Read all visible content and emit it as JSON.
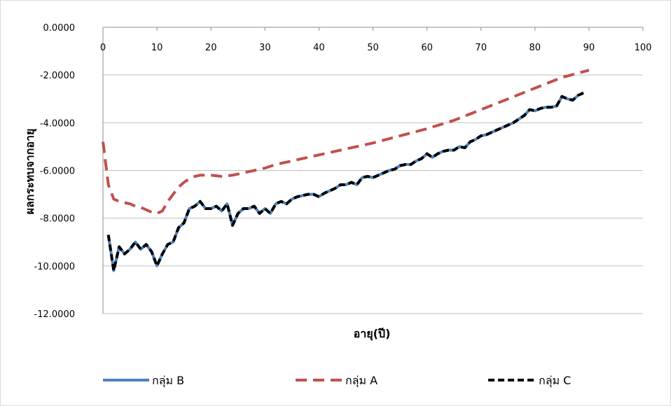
{
  "chart_data": {
    "type": "line",
    "title": "",
    "xlabel": "อายุ(ปี)",
    "ylabel": "ผลกระทบจากอายุ",
    "xlim": [
      0,
      100
    ],
    "ylim": [
      -12,
      0
    ],
    "x_ticks": [
      0,
      10,
      20,
      30,
      40,
      50,
      60,
      70,
      80,
      90,
      100
    ],
    "y_ticks": [
      0,
      -2,
      -4,
      -6,
      -8,
      -10,
      -12
    ],
    "y_tick_labels": [
      "0.0000",
      "-2.0000",
      "-4.0000",
      "-6.0000",
      "-8.0000",
      "-10.0000",
      "-12.0000"
    ],
    "grid": "horizontal",
    "legend_position": "bottom",
    "series": [
      {
        "name": "กลุ่ม B",
        "color": "#4F81BD",
        "dash": "solid",
        "x": [
          1,
          2,
          3,
          4,
          5,
          6,
          7,
          8,
          9,
          10,
          11,
          12,
          13,
          14,
          15,
          16,
          17,
          18,
          19,
          20,
          21,
          22,
          23,
          24,
          25,
          26,
          27,
          28,
          29,
          30,
          31,
          32,
          33,
          34,
          35,
          36,
          37,
          38,
          39,
          40,
          41,
          42,
          43,
          44,
          45,
          46,
          47,
          48,
          49,
          50,
          51,
          52,
          53,
          54,
          55,
          56,
          57,
          58,
          59,
          60,
          61,
          62,
          63,
          64,
          65,
          66,
          67,
          68,
          69,
          70,
          71,
          72,
          73,
          74,
          75,
          76,
          77,
          78,
          79,
          80,
          81,
          82,
          83,
          84,
          85,
          86,
          87,
          88,
          89
        ],
        "y": [
          -8.7,
          -10.2,
          -9.2,
          -9.5,
          -9.3,
          -9.0,
          -9.3,
          -9.1,
          -9.4,
          -10.0,
          -9.5,
          -9.1,
          -9.0,
          -8.4,
          -8.2,
          -7.6,
          -7.5,
          -7.3,
          -7.6,
          -7.6,
          -7.5,
          -7.7,
          -7.4,
          -8.3,
          -7.8,
          -7.6,
          -7.6,
          -7.5,
          -7.8,
          -7.6,
          -7.8,
          -7.4,
          -7.3,
          -7.4,
          -7.2,
          -7.1,
          -7.05,
          -7.0,
          -7.0,
          -7.1,
          -6.95,
          -6.85,
          -6.75,
          -6.6,
          -6.6,
          -6.5,
          -6.6,
          -6.3,
          -6.25,
          -6.3,
          -6.2,
          -6.1,
          -6.0,
          -5.95,
          -5.8,
          -5.75,
          -5.75,
          -5.6,
          -5.5,
          -5.3,
          -5.45,
          -5.3,
          -5.2,
          -5.15,
          -5.15,
          -5.0,
          -5.05,
          -4.8,
          -4.7,
          -4.55,
          -4.5,
          -4.4,
          -4.3,
          -4.2,
          -4.1,
          -4.0,
          -3.85,
          -3.7,
          -3.45,
          -3.5,
          -3.4,
          -3.35,
          -3.35,
          -3.3,
          -2.9,
          -3.0,
          -3.05,
          -2.85,
          -2.75
        ]
      },
      {
        "name": "กลุ่ม A",
        "color": "#C0504D",
        "dash": "dashed",
        "x": [
          0,
          1,
          2,
          3,
          4,
          5,
          6,
          7,
          8,
          9,
          10,
          11,
          12,
          13,
          14,
          15,
          16,
          17,
          18,
          19,
          20,
          22,
          24,
          26,
          28,
          30,
          32,
          35,
          40,
          45,
          50,
          55,
          60,
          65,
          70,
          75,
          80,
          85,
          90
        ],
        "y": [
          -4.8,
          -6.6,
          -7.2,
          -7.3,
          -7.35,
          -7.4,
          -7.5,
          -7.55,
          -7.65,
          -7.75,
          -7.8,
          -7.7,
          -7.3,
          -7.0,
          -6.7,
          -6.5,
          -6.35,
          -6.25,
          -6.2,
          -6.2,
          -6.2,
          -6.25,
          -6.2,
          -6.1,
          -6.0,
          -5.9,
          -5.75,
          -5.6,
          -5.35,
          -5.1,
          -4.85,
          -4.55,
          -4.25,
          -3.9,
          -3.45,
          -3.0,
          -2.55,
          -2.1,
          -1.8
        ]
      },
      {
        "name": "กลุ่ม C",
        "color": "#000000",
        "dash": "dashed",
        "x": [
          1,
          2,
          3,
          4,
          5,
          6,
          7,
          8,
          9,
          10,
          11,
          12,
          13,
          14,
          15,
          16,
          17,
          18,
          19,
          20,
          21,
          22,
          23,
          24,
          25,
          26,
          27,
          28,
          29,
          30,
          31,
          32,
          33,
          34,
          35,
          36,
          37,
          38,
          39,
          40,
          41,
          42,
          43,
          44,
          45,
          46,
          47,
          48,
          49,
          50,
          51,
          52,
          53,
          54,
          55,
          56,
          57,
          58,
          59,
          60,
          61,
          62,
          63,
          64,
          65,
          66,
          67,
          68,
          69,
          70,
          71,
          72,
          73,
          74,
          75,
          76,
          77,
          78,
          79,
          80,
          81,
          82,
          83,
          84,
          85,
          86,
          87,
          88,
          89
        ],
        "y": [
          -8.7,
          -10.2,
          -9.2,
          -9.5,
          -9.3,
          -9.0,
          -9.3,
          -9.1,
          -9.4,
          -10.0,
          -9.5,
          -9.1,
          -9.0,
          -8.4,
          -8.2,
          -7.6,
          -7.5,
          -7.3,
          -7.6,
          -7.6,
          -7.5,
          -7.7,
          -7.4,
          -8.3,
          -7.8,
          -7.6,
          -7.6,
          -7.5,
          -7.8,
          -7.6,
          -7.8,
          -7.4,
          -7.3,
          -7.4,
          -7.2,
          -7.1,
          -7.05,
          -7.0,
          -7.0,
          -7.1,
          -6.95,
          -6.85,
          -6.75,
          -6.6,
          -6.6,
          -6.5,
          -6.6,
          -6.3,
          -6.25,
          -6.3,
          -6.2,
          -6.1,
          -6.0,
          -5.95,
          -5.8,
          -5.75,
          -5.75,
          -5.6,
          -5.5,
          -5.3,
          -5.45,
          -5.3,
          -5.2,
          -5.15,
          -5.15,
          -5.0,
          -5.05,
          -4.8,
          -4.7,
          -4.55,
          -4.5,
          -4.4,
          -4.3,
          -4.2,
          -4.1,
          -4.0,
          -3.85,
          -3.7,
          -3.45,
          -3.5,
          -3.4,
          -3.35,
          -3.35,
          -3.3,
          -2.9,
          -3.0,
          -3.05,
          -2.85,
          -2.75
        ]
      }
    ]
  }
}
